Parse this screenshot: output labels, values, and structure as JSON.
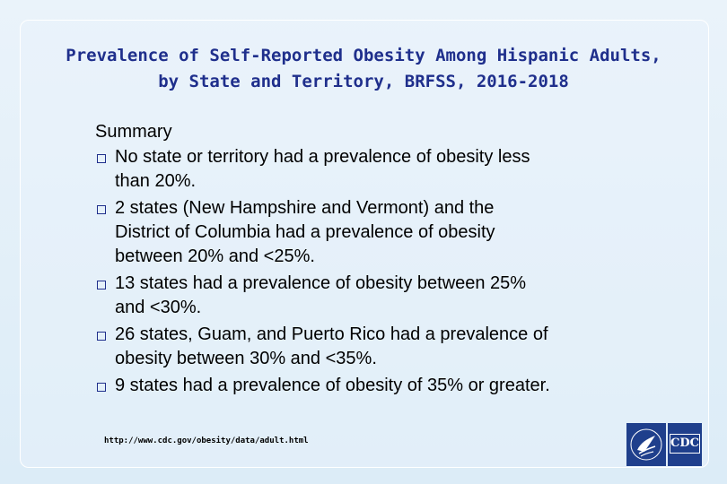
{
  "title": {
    "line1": "Prevalence of Self-Reported Obesity Among Hispanic Adults,",
    "line2": "by State and Territory, BRFSS, 2016-2018"
  },
  "summary": {
    "heading": "Summary",
    "bullets": [
      {
        "lines": [
          "No state or territory had a prevalence of obesity less",
          "than 20%."
        ]
      },
      {
        "lines": [
          "2 states (New Hampshire and Vermont) and the",
          "District of Columbia had a prevalence of obesity",
          "between 20% and <25%."
        ]
      },
      {
        "lines": [
          "13 states had a prevalence of obesity between 25%",
          "and <30%."
        ]
      },
      {
        "lines": [
          "26 states, Guam, and Puerto Rico had a prevalence of",
          "obesity between 30% and <35%."
        ]
      },
      {
        "lines": [
          "9 states had a prevalence of obesity of 35% or greater."
        ]
      }
    ]
  },
  "footer": {
    "url": "http://www.cdc.gov/obesity/data/adult.html"
  },
  "logos": {
    "hhs": "hhs-eagle-logo",
    "cdc": "CDC"
  },
  "colors": {
    "title": "#1f2f8c",
    "text": "#000000",
    "bullet": "#1f2f8c",
    "logo": "#1f3f8c"
  }
}
